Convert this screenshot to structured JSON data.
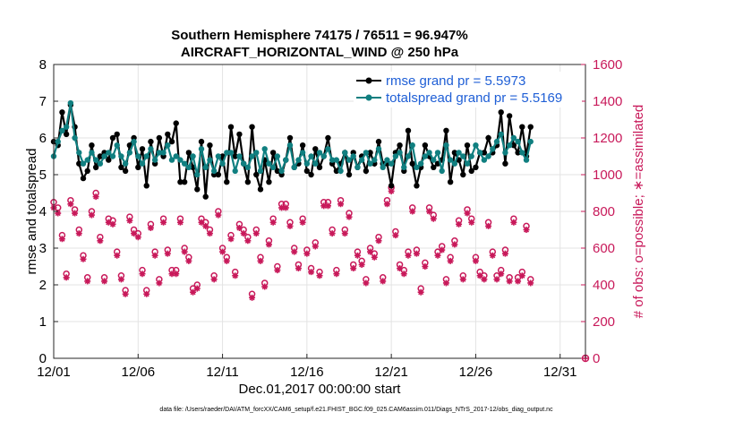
{
  "chart_data": {
    "type": "line",
    "title": "Southern Hemisphere 74175 / 76511 = 96.947%",
    "subtitle": "AIRCRAFT_HORIZONTAL_WIND @ 250 hPa",
    "xlabel": "Dec.01,2017 00:00:00 start",
    "ylabel_left": "rmse and totalspread",
    "ylabel_right": "# of obs: o=possible; ∗=assimilated",
    "footnote": "data file: /Users/raeder/DAI/ATM_forcXX/CAM6_setup/f.e21.FHIST_BGC.f09_025.CAM6assim.011/Diags_NTrS_2017-12/obs_diag_output.nc",
    "xlim": [
      0,
      31.5
    ],
    "ylim_left": [
      0,
      8
    ],
    "ylim_right": [
      0,
      1600
    ],
    "x_ticks": [
      0,
      5,
      10,
      15,
      20,
      25,
      30
    ],
    "x_tick_labels": [
      "12/01",
      "12/06",
      "12/11",
      "12/16",
      "12/21",
      "12/26",
      "12/31"
    ],
    "y_ticks_left": [
      0,
      1,
      2,
      3,
      4,
      5,
      6,
      7,
      8
    ],
    "y_ticks_right": [
      0,
      200,
      400,
      600,
      800,
      1000,
      1200,
      1400,
      1600
    ],
    "grid": true,
    "legend": "top-right",
    "colors": {
      "rmse": "#000000",
      "spread": "#107f80",
      "obs": "#c8195a",
      "legend_text": "#1f5fd6"
    },
    "series": [
      {
        "name": "rmse grand pr = 5.5973",
        "color": "#000000",
        "values": [
          5.9,
          5.8,
          6.7,
          6.1,
          6.9,
          6.3,
          5.3,
          4.9,
          5.1,
          5.8,
          5.2,
          5.5,
          5.6,
          5.4,
          6.0,
          6.1,
          5.2,
          5.1,
          5.8,
          6.0,
          5.2,
          5.7,
          4.7,
          5.9,
          5.3,
          6.0,
          5.5,
          6.1,
          5.9,
          6.4,
          4.8,
          4.8,
          5.6,
          5.2,
          4.6,
          5.9,
          4.4,
          5.8,
          5.0,
          5.0,
          5.5,
          4.8,
          6.3,
          5.5,
          6.1,
          5.3,
          4.8,
          6.3,
          5.0,
          4.6,
          5.4,
          4.8,
          5.6,
          5.1,
          5.0,
          5.4,
          6.0,
          5.2,
          5.3,
          5.8,
          5.1,
          5.0,
          5.7,
          5.2,
          5.5,
          6.0,
          5.3,
          5.1,
          5.3,
          5.6,
          5.0,
          5.6,
          5.2,
          5.5,
          5.1,
          5.6,
          5.3,
          5.9,
          5.3,
          5.3,
          4.7,
          5.6,
          5.8,
          5.1,
          6.2,
          5.3,
          4.7,
          5.2,
          5.8,
          5.5,
          5.2,
          5.3,
          5.4,
          6.2,
          4.8,
          5.6,
          5.4,
          5.0,
          5.8,
          5.1,
          5.2,
          5.6,
          5.6,
          6.0,
          5.6,
          5.8,
          6.7,
          5.3,
          6.6,
          5.8,
          5.6,
          6.3,
          5.5,
          6.3
        ],
        "xstep": 0.25,
        "xstart": 0
      },
      {
        "name": "totalspread grand pr = 5.5169",
        "color": "#107f80",
        "values": [
          5.5,
          5.9,
          6.2,
          6.3,
          6.95,
          6.0,
          5.6,
          5.3,
          5.4,
          5.6,
          5.4,
          5.3,
          5.5,
          5.6,
          5.5,
          5.8,
          5.5,
          5.3,
          5.6,
          5.9,
          5.5,
          5.3,
          5.5,
          5.7,
          5.4,
          5.6,
          5.6,
          5.8,
          5.4,
          5.5,
          5.4,
          5.3,
          5.2,
          5.5,
          5.0,
          5.7,
          5.2,
          5.4,
          5.1,
          5.5,
          5.3,
          5.6,
          5.6,
          5.1,
          5.5,
          5.3,
          5.2,
          5.5,
          5.6,
          5.1,
          5.7,
          5.3,
          5.2,
          5.5,
          5.1,
          5.4,
          5.8,
          5.2,
          5.4,
          5.6,
          5.3,
          5.5,
          5.3,
          5.6,
          5.5,
          5.7,
          5.4,
          5.4,
          5.1,
          5.6,
          5.4,
          5.5,
          5.2,
          5.4,
          5.6,
          5.3,
          5.4,
          5.7,
          5.2,
          5.4,
          5.3,
          5.5,
          5.6,
          5.2,
          5.5,
          5.8,
          5.2,
          5.3,
          5.5,
          5.6,
          5.4,
          5.6,
          5.1,
          5.8,
          5.4,
          5.3,
          5.6,
          5.5,
          5.3,
          5.5,
          5.8,
          5.6,
          5.4,
          5.5,
          5.7,
          5.9,
          6.1,
          5.6,
          5.8,
          6.0,
          5.9,
          5.6,
          5.4,
          5.9
        ],
        "xstep": 0.25,
        "xstart": 0
      }
    ],
    "obs": {
      "xstep": 0.25,
      "xstart": 0,
      "possible": [
        850,
        820,
        670,
        460,
        860,
        810,
        700,
        560,
        440,
        800,
        900,
        660,
        440,
        760,
        750,
        580,
        450,
        370,
        770,
        700,
        680,
        480,
        370,
        730,
        580,
        430,
        760,
        590,
        480,
        480,
        760,
        600,
        550,
        380,
        400,
        760,
        740,
        700,
        450,
        800,
        600,
        550,
        670,
        470,
        730,
        700,
        660,
        350,
        700,
        550,
        410,
        640,
        760,
        500,
        840,
        840,
        740,
        600,
        510,
        760,
        590,
        490,
        630,
        470,
        850,
        850,
        700,
        480,
        860,
        700,
        790,
        510,
        580,
        530,
        430,
        600,
        570,
        660,
        440,
        860,
        930,
        690,
        510,
        480,
        580,
        820,
        590,
        380,
        520,
        820,
        780,
        580,
        610,
        430,
        550,
        640,
        750,
        450,
        810,
        760,
        550,
        470,
        450,
        740,
        580,
        450,
        480,
        590,
        440,
        760,
        440,
        470,
        720,
        430
      ],
      "assimilated": [
        820,
        790,
        650,
        440,
        840,
        790,
        680,
        540,
        420,
        780,
        880,
        640,
        420,
        740,
        730,
        560,
        430,
        350,
        750,
        680,
        660,
        460,
        350,
        710,
        560,
        410,
        740,
        570,
        460,
        460,
        740,
        580,
        530,
        360,
        380,
        740,
        720,
        680,
        430,
        780,
        580,
        530,
        650,
        450,
        710,
        680,
        640,
        330,
        680,
        530,
        390,
        620,
        740,
        480,
        820,
        820,
        720,
        580,
        490,
        740,
        570,
        470,
        610,
        450,
        830,
        830,
        680,
        460,
        840,
        680,
        770,
        490,
        560,
        510,
        410,
        580,
        550,
        640,
        420,
        840,
        910,
        670,
        490,
        460,
        560,
        800,
        570,
        360,
        500,
        800,
        760,
        560,
        590,
        410,
        530,
        620,
        730,
        430,
        790,
        740,
        530,
        450,
        430,
        720,
        560,
        430,
        460,
        570,
        420,
        740,
        420,
        450,
        700,
        410
      ]
    }
  }
}
